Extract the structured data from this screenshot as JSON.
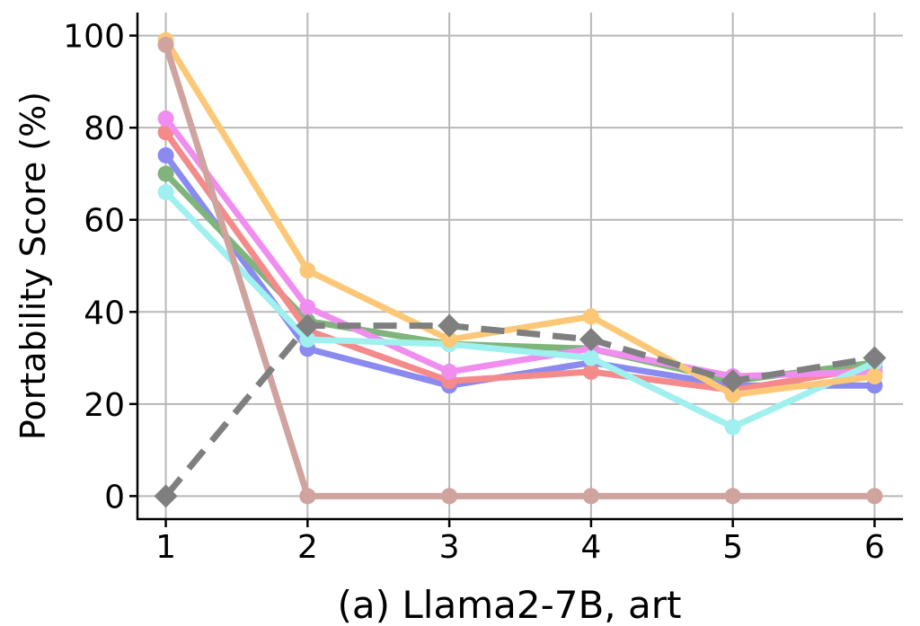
{
  "chart_data": {
    "type": "line",
    "title": "",
    "caption": "(a) Llama2-7B, art",
    "xlabel": "",
    "ylabel": "Portability Score (%)",
    "x": [
      1,
      2,
      3,
      4,
      5,
      6
    ],
    "xlim": [
      0.8,
      6.2
    ],
    "ylim": [
      -5,
      105
    ],
    "yticks": [
      0,
      20,
      40,
      60,
      80,
      100
    ],
    "grid": true,
    "legend": "none",
    "series": [
      {
        "color": "#e9a59f",
        "dashed": false,
        "marker": "circle",
        "values": [
          98,
          0,
          0,
          0,
          0,
          0
        ]
      },
      {
        "color": "#8a8af0",
        "dashed": false,
        "marker": "circle",
        "values": [
          74,
          32,
          24,
          29,
          24,
          24
        ]
      },
      {
        "color": "#7fb57c",
        "dashed": false,
        "marker": "circle",
        "values": [
          70,
          38,
          33,
          32,
          25,
          29
        ]
      },
      {
        "color": "#f48a8a",
        "dashed": false,
        "marker": "circle",
        "values": [
          79,
          36,
          25,
          27,
          23,
          28
        ]
      },
      {
        "color": "#f08ef0",
        "dashed": false,
        "marker": "circle",
        "values": [
          82,
          41,
          27,
          32,
          26,
          27
        ]
      },
      {
        "color": "#9ff0ee",
        "dashed": false,
        "marker": "circle",
        "values": [
          66,
          34,
          33,
          30,
          15,
          29
        ]
      },
      {
        "color": "#fcc878",
        "dashed": false,
        "marker": "circle",
        "values": [
          99,
          49,
          34,
          39,
          22,
          26
        ]
      },
      {
        "color": "#d0a49e",
        "dashed": false,
        "marker": "circle",
        "values": [
          98,
          0,
          0,
          0,
          0,
          0
        ]
      },
      {
        "color": "#7f7f7f",
        "dashed": true,
        "marker": "diamond",
        "values": [
          0,
          37,
          37,
          34,
          25,
          30
        ]
      }
    ]
  }
}
